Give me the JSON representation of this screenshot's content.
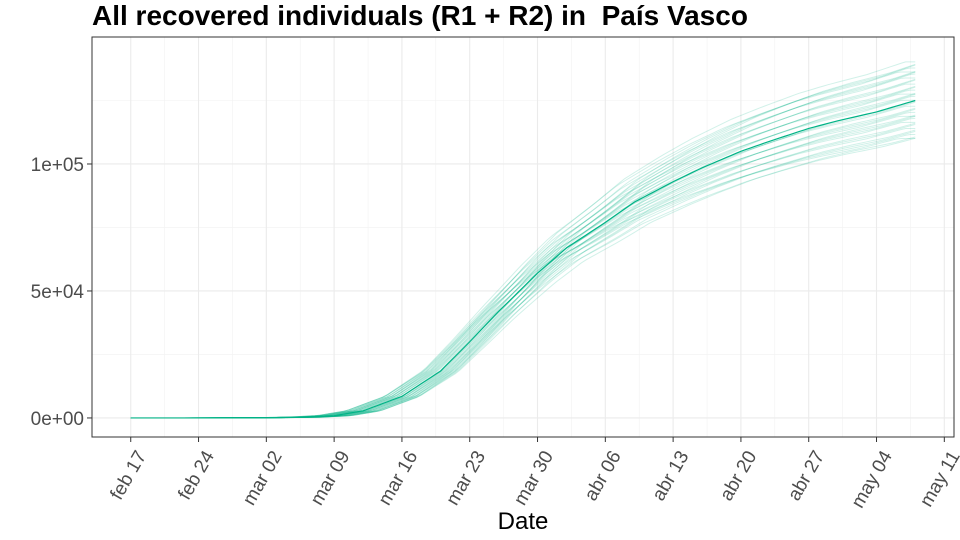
{
  "chart_data": {
    "type": "line",
    "title": "All recovered individuals (R1 + R2) in  País Vasco",
    "xlabel": "Date",
    "ylabel": "",
    "x_start": "2020-02-17",
    "x_end": "2020-05-08",
    "xlim": [
      "2020-02-13",
      "2020-05-12"
    ],
    "ylim": [
      -7500,
      150000
    ],
    "x_ticks": [
      {
        "date": "2020-02-17",
        "label": "feb 17"
      },
      {
        "date": "2020-02-24",
        "label": "feb 24"
      },
      {
        "date": "2020-03-02",
        "label": "mar 02"
      },
      {
        "date": "2020-03-09",
        "label": "mar 09"
      },
      {
        "date": "2020-03-16",
        "label": "mar 16"
      },
      {
        "date": "2020-03-23",
        "label": "mar 23"
      },
      {
        "date": "2020-03-30",
        "label": "mar 30"
      },
      {
        "date": "2020-04-06",
        "label": "abr 06"
      },
      {
        "date": "2020-04-13",
        "label": "abr 13"
      },
      {
        "date": "2020-04-20",
        "label": "abr 20"
      },
      {
        "date": "2020-04-27",
        "label": "abr 27"
      },
      {
        "date": "2020-05-04",
        "label": "may 04"
      },
      {
        "date": "2020-05-11",
        "label": "may 11"
      }
    ],
    "y_ticks": [
      {
        "value": 0,
        "label": "0e+00"
      },
      {
        "value": 50000,
        "label": "5e+04"
      },
      {
        "value": 100000,
        "label": "1e+05"
      }
    ],
    "grid": true,
    "legend": "none",
    "main_series": {
      "color": "#00b386",
      "points": [
        [
          "2020-02-17",
          0
        ],
        [
          "2020-02-24",
          0
        ],
        [
          "2020-03-02",
          100
        ],
        [
          "2020-03-06",
          300
        ],
        [
          "2020-03-09",
          900
        ],
        [
          "2020-03-12",
          2800
        ],
        [
          "2020-03-16",
          8500
        ],
        [
          "2020-03-20",
          18500
        ],
        [
          "2020-03-23",
          30000
        ],
        [
          "2020-03-26",
          42000
        ],
        [
          "2020-03-30",
          57000
        ],
        [
          "2020-04-02",
          67000
        ],
        [
          "2020-04-06",
          77000
        ],
        [
          "2020-04-09",
          85000
        ],
        [
          "2020-04-13",
          93000
        ],
        [
          "2020-04-16",
          98500
        ],
        [
          "2020-04-20",
          105000
        ],
        [
          "2020-04-23",
          109000
        ],
        [
          "2020-04-27",
          114000
        ],
        [
          "2020-04-30",
          117000
        ],
        [
          "2020-05-04",
          120500
        ],
        [
          "2020-05-08",
          125000
        ]
      ]
    },
    "simulations": {
      "color": "#00b386",
      "count": 40,
      "final_range": [
        110000,
        141000
      ]
    }
  }
}
